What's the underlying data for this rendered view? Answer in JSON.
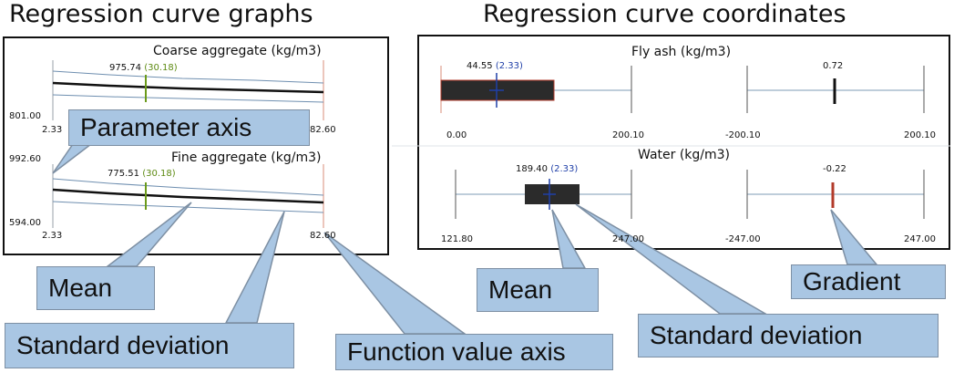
{
  "headings": {
    "left": "Regression curve graphs",
    "right": "Regression curve coordinates"
  },
  "left_panel": {
    "graphs": [
      {
        "title": "Coarse aggregate (kg/m3)",
        "mean_value": "975.74",
        "std_value": "(30.18)",
        "axis_min": "801.00",
        "x_min": "2.33",
        "x_max": "82.60"
      },
      {
        "title": "Fine aggregate (kg/m3)",
        "mean_value": "775.51",
        "std_value": "(30.18)",
        "axis_top": "992.60",
        "axis_min": "594.00",
        "x_min": "2.33",
        "x_max": "82.60"
      }
    ]
  },
  "right_panel": {
    "rows": [
      {
        "title": "Fly ash (kg/m3)",
        "mean_value": "44.55",
        "std_value": "(2.33)",
        "gradient_value": "0.72",
        "mean_min": "0.00",
        "mean_max": "200.10",
        "grad_min": "-200.10",
        "grad_max": "200.10"
      },
      {
        "title": "Water (kg/m3)",
        "mean_value": "189.40",
        "std_value": "(2.33)",
        "gradient_value": "-0.22",
        "mean_min": "121.80",
        "mean_max": "247.00",
        "grad_min": "-247.00",
        "grad_max": "247.00"
      }
    ]
  },
  "callouts": {
    "parameter_axis": "Parameter axis",
    "mean_left": "Mean",
    "std_left": "Standard deviation",
    "function_value_axis": "Function value axis",
    "mean_right": "Mean",
    "std_right": "Standard deviation",
    "gradient": "Gradient"
  },
  "colors": {
    "callout_fill": "#a9c6e3",
    "mean_line": "#111111",
    "std_line": "#6f8fb0",
    "green_marker": "#6b9a1a",
    "blue_marker": "#1f3fa8",
    "bar_fill": "#2b2b2b",
    "red_outline": "#b23a2a"
  }
}
